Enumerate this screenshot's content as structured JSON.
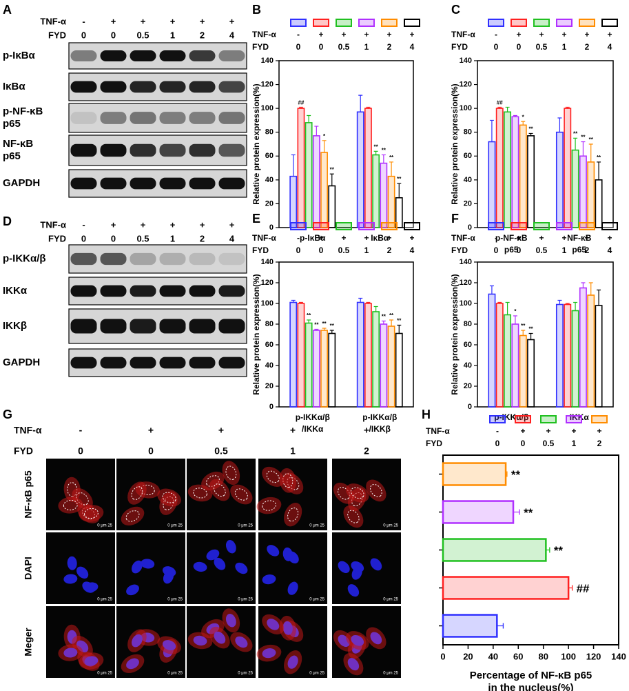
{
  "blots": [
    {
      "panel": "A",
      "row_labels": [
        "TNF-α",
        "FYD"
      ],
      "lanes": [
        [
          "-",
          "0"
        ],
        [
          "+",
          "0"
        ],
        [
          "+",
          "0.5"
        ],
        [
          "+",
          "1"
        ],
        [
          "+",
          "2"
        ],
        [
          "+",
          "4"
        ]
      ],
      "bands": [
        [
          "p-IκBα"
        ],
        [
          "IκBα"
        ],
        [
          "p-NF-κB",
          "p65"
        ],
        [
          "NF-κB",
          "p65"
        ],
        [
          "GAPDH"
        ]
      ]
    },
    {
      "panel": "D",
      "row_labels": [
        "TNF-α",
        "FYD"
      ],
      "lanes": [
        [
          "-",
          "0"
        ],
        [
          "+",
          "0"
        ],
        [
          "+",
          "0.5"
        ],
        [
          "+",
          "1"
        ],
        [
          "+",
          "2"
        ],
        [
          "+",
          "4"
        ]
      ],
      "bands": [
        [
          "p-IKKα/β"
        ],
        [
          "IKKα"
        ],
        [
          "IKKβ"
        ],
        [
          "GAPDH"
        ]
      ]
    }
  ],
  "micrographs": {
    "panel": "G",
    "row_labels": [
      "TNF-α",
      "FYD"
    ],
    "columns": [
      [
        "-",
        "0"
      ],
      [
        "+",
        "0"
      ],
      [
        "+",
        "0.5"
      ],
      [
        "+",
        "1"
      ],
      [
        "+",
        "2"
      ]
    ],
    "stains": [
      "NF-κB p65",
      "DAPI",
      "Meger"
    ],
    "scale_label": "0  μm  25"
  },
  "chart_data": [
    {
      "type": "bar",
      "panel": "B",
      "ylabel": "Relative protein expression(%)",
      "row_labels": [
        "TNF-α",
        "FYD"
      ],
      "categories": [
        [
          "p-IκBα"
        ],
        [
          "IκBα"
        ]
      ],
      "ylim": [
        0,
        140
      ],
      "yticks": [
        0,
        20,
        40,
        60,
        80,
        100,
        120,
        140
      ],
      "series": [
        {
          "conditions": [
            "-",
            "0"
          ],
          "color": "#3030ff",
          "values": [
            43,
            97
          ],
          "errors": [
            18,
            14
          ],
          "annotations": [
            null,
            null
          ]
        },
        {
          "conditions": [
            "+",
            "0"
          ],
          "color": "#ff2020",
          "values": [
            100,
            100
          ],
          "errors": [
            1,
            1
          ],
          "annotations": [
            "##",
            null
          ]
        },
        {
          "conditions": [
            "+",
            "0.5"
          ],
          "color": "#20c020",
          "values": [
            88,
            61
          ],
          "errors": [
            6,
            3
          ],
          "annotations": [
            null,
            "**"
          ]
        },
        {
          "conditions": [
            "+",
            "1"
          ],
          "color": "#b030ff",
          "values": [
            77,
            54
          ],
          "errors": [
            8,
            7
          ],
          "annotations": [
            null,
            "**"
          ]
        },
        {
          "conditions": [
            "+",
            "2"
          ],
          "color": "#ff8c00",
          "values": [
            63,
            43
          ],
          "errors": [
            10,
            12
          ],
          "annotations": [
            "*",
            "**"
          ]
        },
        {
          "conditions": [
            "+",
            "4"
          ],
          "color": "#000000",
          "values": [
            35,
            25
          ],
          "errors": [
            10,
            12
          ],
          "annotations": [
            "**",
            "**"
          ]
        }
      ]
    },
    {
      "type": "bar",
      "panel": "C",
      "ylabel": "Relative protein expression(%)",
      "row_labels": [
        "TNF-α",
        "FYD"
      ],
      "categories": [
        [
          "p-NF-κB",
          "p65"
        ],
        [
          "NF-κB",
          "p65"
        ]
      ],
      "ylim": [
        0,
        140
      ],
      "yticks": [
        0,
        20,
        40,
        60,
        80,
        100,
        120,
        140
      ],
      "series": [
        {
          "conditions": [
            "-",
            "0"
          ],
          "color": "#3030ff",
          "values": [
            72,
            80
          ],
          "errors": [
            18,
            12
          ],
          "annotations": [
            null,
            null
          ]
        },
        {
          "conditions": [
            "+",
            "0"
          ],
          "color": "#ff2020",
          "values": [
            100,
            100
          ],
          "errors": [
            1,
            1
          ],
          "annotations": [
            "##",
            null
          ]
        },
        {
          "conditions": [
            "+",
            "0.5"
          ],
          "color": "#20c020",
          "values": [
            97,
            65
          ],
          "errors": [
            4,
            10
          ],
          "annotations": [
            null,
            "**"
          ]
        },
        {
          "conditions": [
            "+",
            "1"
          ],
          "color": "#b030ff",
          "values": [
            93,
            60
          ],
          "errors": [
            1,
            12
          ],
          "annotations": [
            null,
            "**"
          ]
        },
        {
          "conditions": [
            "+",
            "2"
          ],
          "color": "#ff8c00",
          "values": [
            86,
            55
          ],
          "errors": [
            3,
            15
          ],
          "annotations": [
            "*",
            "**"
          ]
        },
        {
          "conditions": [
            "+",
            "4"
          ],
          "color": "#000000",
          "values": [
            77,
            40
          ],
          "errors": [
            2,
            15
          ],
          "annotations": [
            "**",
            "**"
          ]
        }
      ]
    },
    {
      "type": "bar",
      "panel": "E",
      "ylabel": "Relative protein expression(%)",
      "row_labels": [
        "TNF-α",
        "FYD"
      ],
      "categories": [
        [
          "p-IKKα/β",
          "/IKKα"
        ],
        [
          "p-IKKα/β",
          "/IKKβ"
        ]
      ],
      "ylim": [
        0,
        140
      ],
      "yticks": [
        0,
        20,
        40,
        60,
        80,
        100,
        120,
        140
      ],
      "series": [
        {
          "conditions": [
            "-",
            "0"
          ],
          "color": "#3030ff",
          "values": [
            101,
            101
          ],
          "errors": [
            2,
            4
          ],
          "annotations": [
            null,
            null
          ]
        },
        {
          "conditions": [
            "+",
            "0"
          ],
          "color": "#ff2020",
          "values": [
            100,
            100
          ],
          "errors": [
            1,
            1
          ],
          "annotations": [
            null,
            null
          ]
        },
        {
          "conditions": [
            "+",
            "0.5"
          ],
          "color": "#20c020",
          "values": [
            81,
            92
          ],
          "errors": [
            3,
            5
          ],
          "annotations": [
            "**",
            null
          ]
        },
        {
          "conditions": [
            "+",
            "1"
          ],
          "color": "#b030ff",
          "values": [
            74,
            80
          ],
          "errors": [
            1,
            3
          ],
          "annotations": [
            "**",
            "**"
          ]
        },
        {
          "conditions": [
            "+",
            "2"
          ],
          "color": "#ff8c00",
          "values": [
            74,
            78
          ],
          "errors": [
            2,
            6
          ],
          "annotations": [
            "**",
            "**"
          ]
        },
        {
          "conditions": [
            "+",
            "4"
          ],
          "color": "#000000",
          "values": [
            71,
            71
          ],
          "errors": [
            3,
            8
          ],
          "annotations": [
            "**",
            "**"
          ]
        }
      ]
    },
    {
      "type": "bar",
      "panel": "F",
      "ylabel": "Relative protein expression(%)",
      "row_labels": [
        "TNF-α",
        "FYD"
      ],
      "categories": [
        [
          "p-IKKα/β"
        ],
        [
          "IKKα"
        ]
      ],
      "ylim": [
        0,
        140
      ],
      "yticks": [
        0,
        20,
        40,
        60,
        80,
        100,
        120,
        140
      ],
      "series": [
        {
          "conditions": [
            "-",
            "0"
          ],
          "color": "#3030ff",
          "values": [
            109,
            99
          ],
          "errors": [
            8,
            4
          ],
          "annotations": [
            null,
            null
          ]
        },
        {
          "conditions": [
            "+",
            "0"
          ],
          "color": "#ff2020",
          "values": [
            100,
            99
          ],
          "errors": [
            1,
            1
          ],
          "annotations": [
            null,
            null
          ]
        },
        {
          "conditions": [
            "+",
            "0.5"
          ],
          "color": "#20c020",
          "values": [
            89,
            93
          ],
          "errors": [
            12,
            8
          ],
          "annotations": [
            null,
            null
          ]
        },
        {
          "conditions": [
            "+",
            "1"
          ],
          "color": "#b030ff",
          "values": [
            80,
            115
          ],
          "errors": [
            8,
            5
          ],
          "annotations": [
            "*",
            null
          ]
        },
        {
          "conditions": [
            "+",
            "2"
          ],
          "color": "#ff8c00",
          "values": [
            69,
            108
          ],
          "errors": [
            5,
            12
          ],
          "annotations": [
            "**",
            null
          ]
        },
        {
          "conditions": [
            "+",
            "4"
          ],
          "color": "#000000",
          "values": [
            65,
            98
          ],
          "errors": [
            6,
            15
          ],
          "annotations": [
            "**",
            null
          ]
        }
      ]
    },
    {
      "type": "hbar",
      "panel": "H",
      "xlabel": [
        "Percentage of NF-κB p65",
        "in the nucleus(%)"
      ],
      "row_labels": [
        "TNF-α",
        "FYD"
      ],
      "xlim": [
        0,
        140
      ],
      "xticks": [
        0,
        20,
        40,
        60,
        80,
        100,
        120,
        140
      ],
      "conditions": [
        [
          "-",
          "0"
        ],
        [
          "+",
          "0"
        ],
        [
          "+",
          "0.5"
        ],
        [
          "+",
          "1"
        ],
        [
          "+",
          "2"
        ]
      ],
      "colors": [
        "#3030ff",
        "#ff2020",
        "#20c020",
        "#b030ff",
        "#ff8c00"
      ],
      "values": [
        43,
        100,
        82,
        56,
        50
      ],
      "errors": [
        5,
        3,
        3,
        5,
        1
      ],
      "annotations": [
        null,
        "##",
        "**",
        "**",
        "**"
      ]
    }
  ]
}
